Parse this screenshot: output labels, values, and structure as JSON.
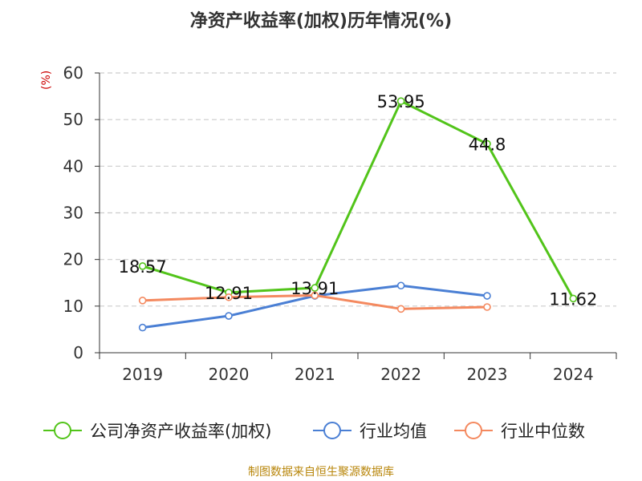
{
  "title": "净资产收益率(加权)历年情况(%)",
  "unit_label": "(%)",
  "source": "制图数据来自恒生聚源数据库",
  "colors": {
    "title": "#333333",
    "unit": "#cc0000",
    "source": "#b8860b",
    "grid": "#cccccc",
    "axis": "#333333"
  },
  "chart_data": {
    "type": "line",
    "title": "净资产收益率(加权)历年情况(%)",
    "ylabel": "(%)",
    "xlabel": "",
    "categories": [
      "2019",
      "2020",
      "2021",
      "2022",
      "2023",
      "2024"
    ],
    "ylim": [
      0,
      60
    ],
    "yticks": [
      0,
      10,
      20,
      30,
      40,
      50,
      60
    ],
    "grid": true,
    "legend_position": "bottom",
    "series": [
      {
        "name": "公司净资产收益率(加权)",
        "color": "#52c41a",
        "values": [
          18.57,
          12.91,
          13.91,
          53.95,
          44.8,
          11.62
        ],
        "labels": [
          "18.57",
          "12.91",
          "13.91",
          "53.95",
          "44.8",
          "11.62"
        ]
      },
      {
        "name": "行业均值",
        "color": "#4a7fd4",
        "values": [
          5.4,
          7.9,
          12.2,
          14.4,
          12.2,
          null
        ],
        "labels": []
      },
      {
        "name": "行业中位数",
        "color": "#f4895f",
        "values": [
          11.2,
          11.9,
          12.3,
          9.4,
          9.8,
          null
        ],
        "labels": []
      }
    ]
  }
}
